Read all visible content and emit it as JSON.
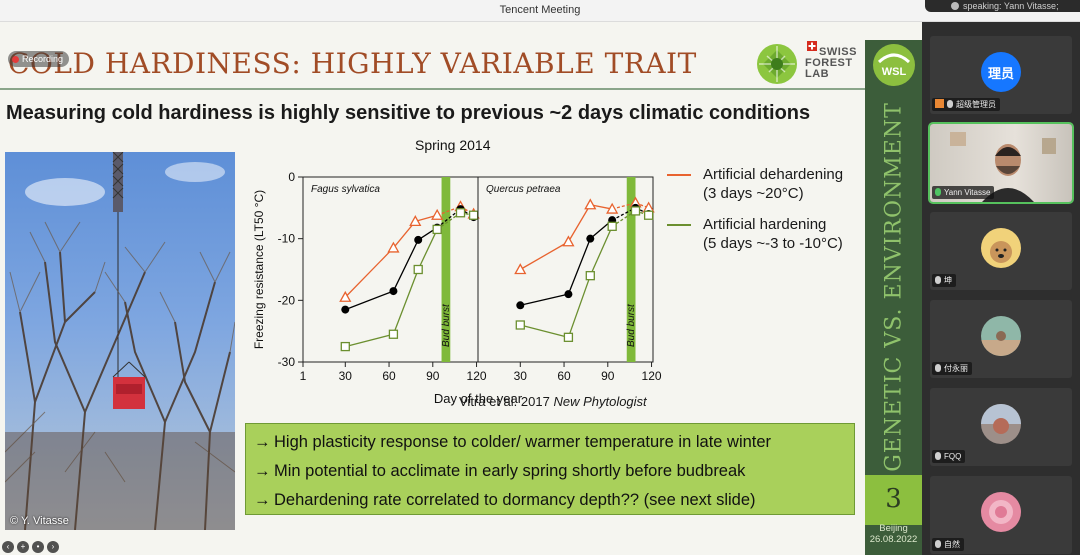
{
  "window": {
    "title": "Tencent Meeting",
    "speaking": "speaking: Yann Vitasse;"
  },
  "recording": {
    "label": "Recording"
  },
  "slide": {
    "title": "COLD HARDINESS: HIGHLY VARIABLE TRAIT",
    "logo_text": [
      "SWISS",
      "FOREST",
      "LAB"
    ],
    "subtitle": "Measuring cold hardiness is highly sensitive to previous ~2 days climatic conditions",
    "photo_credit": "© Y. Vitasse",
    "legend": [
      {
        "label_1": "Artificial dehardening",
        "label_2": "(3 days ~20°C)",
        "color": "#e8632f"
      },
      {
        "label_1": "Artificial hardening",
        "label_2": "(5 days ~-3 to -10°C)",
        "color": "#6b8f2f"
      }
    ],
    "citation": {
      "authors": "Vitra et al. 2017",
      "journal": "New Phytologist"
    },
    "bullets": [
      "High plasticity response to colder/ warmer temperature in late winter",
      "Min potential to acclimate in early spring shortly before budbreak",
      "Dehardening rate correlated to dormancy depth?? (see next slide)"
    ],
    "bullet_arrow": "→",
    "side": {
      "vertical_text": "GENETIC VS. ENVIRONMENT",
      "page_number": "3",
      "place": "Beijing",
      "date": "26.08.2022"
    }
  },
  "chart_data": {
    "type": "scatter",
    "title": "Spring 2014",
    "xlabel": "Day of the year",
    "ylabel": "Freezing resistance (LT50 °C)",
    "ylim": [
      -30,
      0
    ],
    "yticks": [
      0,
      -10,
      -20,
      -30
    ],
    "panels": [
      {
        "name": "Fagus sylvatica",
        "xlim": [
          1,
          121
        ],
        "xticks": [
          1,
          30,
          60,
          90,
          120
        ],
        "bud_burst_label": "Bud burst",
        "bud_burst_x": [
          96,
          102
        ],
        "series": [
          {
            "name": "Artificial dehardening",
            "marker": "triangle",
            "color": "#e8632f",
            "dashed_last": true,
            "x": [
              30,
              63,
              78,
              93,
              109,
              118
            ],
            "y": [
              -19.5,
              -11.5,
              -7.2,
              -6.2,
              -4.8,
              -6.0
            ]
          },
          {
            "name": "Control",
            "marker": "circle",
            "color": "#000000",
            "dashed_last": true,
            "x": [
              30,
              63,
              80,
              93,
              109,
              118
            ],
            "y": [
              -21.5,
              -18.5,
              -10.2,
              -8.2,
              -5.2,
              -6.5
            ]
          },
          {
            "name": "Artificial hardening",
            "marker": "square",
            "color": "#6b8f2f",
            "dashed_last": true,
            "x": [
              30,
              63,
              80,
              93,
              109,
              118
            ],
            "y": [
              -27.5,
              -25.5,
              -15.0,
              -8.5,
              -5.8,
              -6.2
            ]
          }
        ]
      },
      {
        "name": "Quercus petraea",
        "xlim": [
          1,
          121
        ],
        "xticks": [
          30,
          60,
          90,
          120
        ],
        "bud_burst_label": "Bud burst",
        "bud_burst_x": [
          103,
          109
        ],
        "series": [
          {
            "name": "Artificial dehardening",
            "marker": "triangle",
            "color": "#e8632f",
            "dashed_last": true,
            "x": [
              30,
              63,
              78,
              93,
              109,
              118
            ],
            "y": [
              -15.0,
              -10.5,
              -4.5,
              -5.2,
              -4.2,
              -5.0
            ]
          },
          {
            "name": "Control",
            "marker": "circle",
            "color": "#000000",
            "dashed_last": true,
            "x": [
              30,
              63,
              78,
              93,
              109,
              118
            ],
            "y": [
              -20.8,
              -19.0,
              -10.0,
              -7.0,
              -5.0,
              -6.0
            ]
          },
          {
            "name": "Artificial hardening",
            "marker": "square",
            "color": "#6b8f2f",
            "dashed_last": true,
            "x": [
              30,
              63,
              78,
              93,
              109,
              118
            ],
            "y": [
              -24.0,
              -26.0,
              -16.0,
              -8.0,
              -5.5,
              -6.2
            ]
          }
        ]
      }
    ]
  },
  "participants": [
    {
      "name": "超级管理员",
      "avatar_text": "理员",
      "avatar_color": "#1677ff",
      "host": true,
      "video": false
    },
    {
      "name": "Yann Vitasse",
      "active": true,
      "video": true
    },
    {
      "name": "坤",
      "avatar_color": "#f1d27a",
      "video": false
    },
    {
      "name": "付永丽",
      "avatar_color": "#8fb7a8",
      "video": false
    },
    {
      "name": "FQQ",
      "avatar_color": "#9d8f89",
      "video": false
    },
    {
      "name": "自然",
      "avatar_color": "#e58aa2",
      "video": false
    }
  ]
}
